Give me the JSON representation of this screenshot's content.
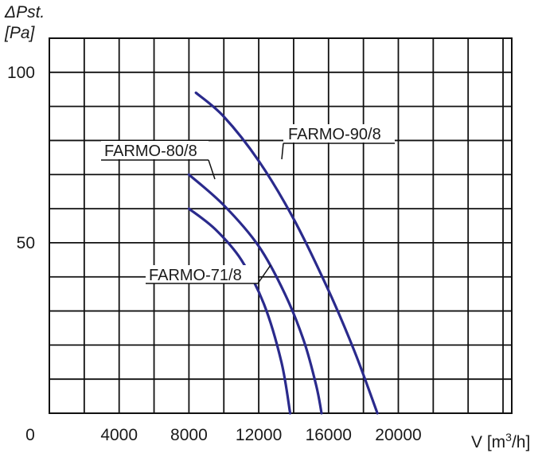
{
  "chart_data": {
    "type": "line",
    "ylabel_line1": "ΔPst.",
    "ylabel_line2": "[Pa]",
    "xlabel_prefix": "V [m",
    "xlabel_sup": "3",
    "xlabel_suffix": "/h]",
    "xlim": [
      0,
      26500
    ],
    "ylim": [
      0,
      110
    ],
    "x_ticks": [
      {
        "value": 0,
        "label": "0"
      },
      {
        "value": 4000,
        "label": "4000"
      },
      {
        "value": 8000,
        "label": "8000"
      },
      {
        "value": 12000,
        "label": "12000"
      },
      {
        "value": 16000,
        "label": "16000"
      },
      {
        "value": 20000,
        "label": "20000"
      }
    ],
    "y_ticks": [
      {
        "value": 100,
        "label": "100"
      },
      {
        "value": 50,
        "label": "50"
      }
    ],
    "grid": true,
    "line_color": "#2a2a8c",
    "series": [
      {
        "name": "FARMO-90/8",
        "x": [
          8400,
          10000,
          12000,
          14000,
          16000,
          17500,
          18800
        ],
        "y": [
          94,
          87,
          74,
          57,
          36,
          18,
          0
        ]
      },
      {
        "name": "FARMO-80/8",
        "x": [
          8000,
          10000,
          12000,
          13500,
          14600,
          15300,
          15600
        ],
        "y": [
          70,
          61,
          49,
          35,
          21,
          8,
          0
        ]
      },
      {
        "name": "FARMO-71/8",
        "x": [
          8000,
          9500,
          11000,
          12300,
          13300,
          13800
        ],
        "y": [
          60,
          54,
          45,
          32,
          15,
          0
        ]
      }
    ]
  }
}
